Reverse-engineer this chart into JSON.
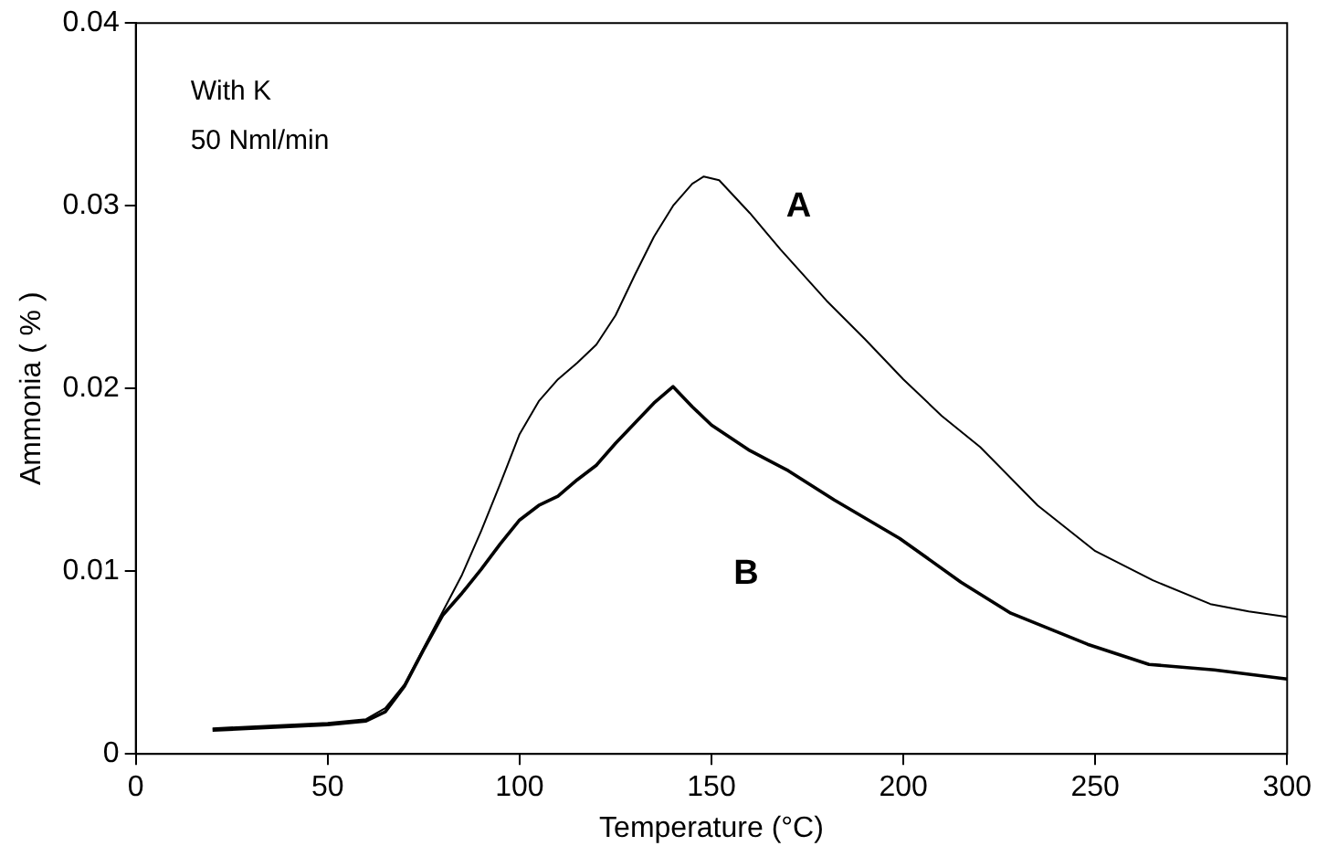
{
  "chart_data": {
    "type": "line",
    "xlabel": "Temperature (°C)",
    "ylabel": "Ammonia ( % )",
    "xlim": [
      0,
      300
    ],
    "xticks": [
      0,
      50,
      100,
      150,
      200,
      250,
      300
    ],
    "ylim": [
      0,
      0.04
    ],
    "yticks": [
      0,
      0.01,
      0.02,
      0.03,
      0.04
    ],
    "grid": false,
    "legend": false,
    "marker": "none",
    "line_style": "solid",
    "annotations": [
      "With K",
      "50 Nml/min"
    ],
    "series": [
      {
        "name": "A",
        "color": "#000000",
        "x": [
          20,
          30,
          40,
          50,
          60,
          65,
          70,
          75,
          80,
          85,
          90,
          95,
          100,
          105,
          110,
          115,
          120,
          125,
          130,
          135,
          140,
          145,
          148,
          152,
          160,
          168,
          180,
          190,
          200,
          210,
          220,
          235,
          250,
          265,
          280,
          290,
          300
        ],
        "values": [
          0.0014,
          0.0015,
          0.0016,
          0.0017,
          0.0019,
          0.0025,
          0.0038,
          0.0058,
          0.0078,
          0.0098,
          0.0122,
          0.0148,
          0.0175,
          0.0193,
          0.0205,
          0.0214,
          0.0224,
          0.024,
          0.0262,
          0.0283,
          0.03,
          0.0312,
          0.0316,
          0.0314,
          0.0296,
          0.0276,
          0.0248,
          0.0227,
          0.0205,
          0.0185,
          0.0168,
          0.0136,
          0.0111,
          0.0095,
          0.0082,
          0.0078,
          0.0075
        ]
      },
      {
        "name": "B",
        "color": "#000000",
        "x": [
          20,
          30,
          40,
          50,
          60,
          65,
          70,
          75,
          80,
          85,
          90,
          95,
          100,
          105,
          110,
          115,
          120,
          125,
          130,
          135,
          140,
          145,
          150,
          160,
          170,
          182,
          199,
          215,
          228,
          248,
          264,
          281,
          300
        ],
        "values": [
          0.0013,
          0.0014,
          0.0015,
          0.0016,
          0.0018,
          0.0023,
          0.0037,
          0.0057,
          0.0076,
          0.0088,
          0.0101,
          0.0115,
          0.0128,
          0.0136,
          0.0141,
          0.015,
          0.0158,
          0.017,
          0.0181,
          0.0192,
          0.0201,
          0.019,
          0.018,
          0.0166,
          0.0155,
          0.0139,
          0.0118,
          0.0094,
          0.0077,
          0.006,
          0.0049,
          0.0046,
          0.0041
        ]
      }
    ]
  }
}
